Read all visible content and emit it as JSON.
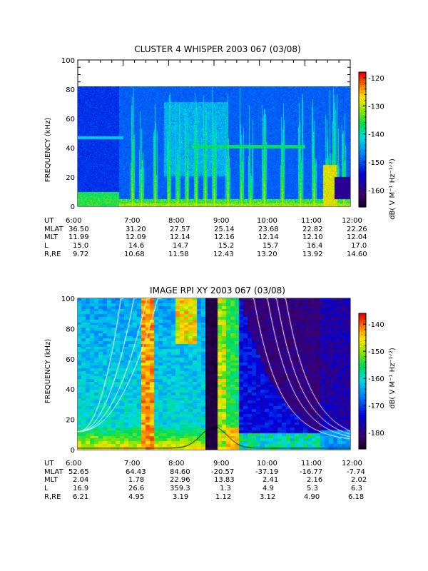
{
  "panels": [
    {
      "title": "CLUSTER 4 WHISPER 2003 067 (03/08)",
      "ylabel": "FREQUENCY (kHz)",
      "yticks": [
        "0",
        "20",
        "40",
        "60",
        "80",
        "100"
      ],
      "colorbar_ticks": [
        "-120",
        "-130",
        "-140",
        "-150",
        "-160"
      ],
      "colorbar_label": "dB( V M⁻¹ Hz⁻¹ᐟ²)",
      "ephemeris": {
        "labels": [
          "UT",
          "MLAT",
          "MLT",
          "L",
          "R,RE"
        ],
        "columns": [
          [
            "6:00",
            "36.50",
            "11.99",
            "15.0",
            "9.72"
          ],
          [
            "7:00",
            "31.20",
            "12.09",
            "14.6",
            "10.68"
          ],
          [
            "8:00",
            "27.57",
            "12.14",
            "14.7",
            "11.58"
          ],
          [
            "9:00",
            "25.14",
            "12.16",
            "15.2",
            "12.43"
          ],
          [
            "10:00",
            "23.68",
            "12.14",
            "15.7",
            "13.20"
          ],
          [
            "11:00",
            "22.82",
            "12.10",
            "16.4",
            "13.92"
          ],
          [
            "12:00",
            "22.26",
            "12.04",
            "17.0",
            "14.60"
          ]
        ]
      }
    },
    {
      "title": "IMAGE RPI XY 2003 067 (03/08)",
      "ylabel": "FREQUENCY (kHz)",
      "yticks": [
        "0",
        "20",
        "40",
        "60",
        "80",
        "100"
      ],
      "colorbar_ticks": [
        "-140",
        "-150",
        "-160",
        "-170",
        "-180"
      ],
      "colorbar_label": "dB( V M⁻¹ Hz⁻¹ᐟ²)",
      "ephemeris": {
        "labels": [
          "UT",
          "MLAT",
          "MLT",
          "L",
          "R,RE"
        ],
        "columns": [
          [
            "6:00",
            "52.65",
            "2.04",
            "16.9",
            "6.21"
          ],
          [
            "7:00",
            "64.43",
            "1.78",
            "26.6",
            "4.95"
          ],
          [
            "8:00",
            "84.60",
            "22.96",
            "359.3",
            "3.19"
          ],
          [
            "9:00",
            "-20.57",
            "13.83",
            "1.3",
            "1.12"
          ],
          [
            "10:00",
            "-37.19",
            "2.41",
            "4.9",
            "3.12"
          ],
          [
            "11:00",
            "-16.77",
            "2.16",
            "5.3",
            "4.90"
          ],
          [
            "12:00",
            "-7.74",
            "2.02",
            "6.3",
            "6.18"
          ]
        ]
      }
    }
  ],
  "chart_data": [
    {
      "type": "heatmap",
      "title": "CLUSTER 4 WHISPER 2003 067 (03/08)",
      "ylabel": "FREQUENCY (kHz)",
      "xlabel": "",
      "x_ticks": [
        "6:00",
        "7:00",
        "8:00",
        "9:00",
        "10:00",
        "11:00",
        "12:00"
      ],
      "xlim_hours": [
        6,
        12
      ],
      "ylim": [
        0,
        100
      ],
      "data_ymax": 80,
      "colorbar": {
        "label": "dB( V M-1 Hz-1/2)",
        "range": [
          -166,
          -118
        ],
        "ticks": [
          -120,
          -130,
          -140,
          -150,
          -160
        ]
      },
      "features": {
        "low_band_kHz": [
          0,
          10
        ],
        "bursts_hours": [
          7.2,
          7.4,
          7.7,
          8.0,
          8.2,
          8.4,
          8.6,
          8.8,
          9.0,
          9.3,
          9.6,
          9.8,
          10.1,
          10.5,
          10.9,
          11.2,
          11.5,
          11.6,
          11.7,
          11.85
        ],
        "emission_line_kHz": 40
      }
    },
    {
      "type": "heatmap",
      "title": "IMAGE RPI XY 2003 067 (03/08)",
      "ylabel": "FREQUENCY (kHz)",
      "xlabel": "",
      "x_ticks": [
        "6:00",
        "7:00",
        "8:00",
        "9:00",
        "10:00",
        "11:00",
        "12:00"
      ],
      "xlim_hours": [
        6,
        12
      ],
      "ylim": [
        0,
        100
      ],
      "colorbar": {
        "label": "dB( V M-1 Hz-1/2)",
        "range": [
          -186,
          -136
        ],
        "ticks": [
          -140,
          -150,
          -160,
          -170,
          -180
        ]
      },
      "overlay_curves": {
        "description": "plasma frequency contours",
        "left_branch_end_hours": [
          7.0,
          7.3,
          7.6,
          7.85
        ],
        "right_branch_start_hours": [
          9.85,
          10.15,
          10.35,
          10.55
        ],
        "perigee_hours": 9.0
      }
    }
  ]
}
